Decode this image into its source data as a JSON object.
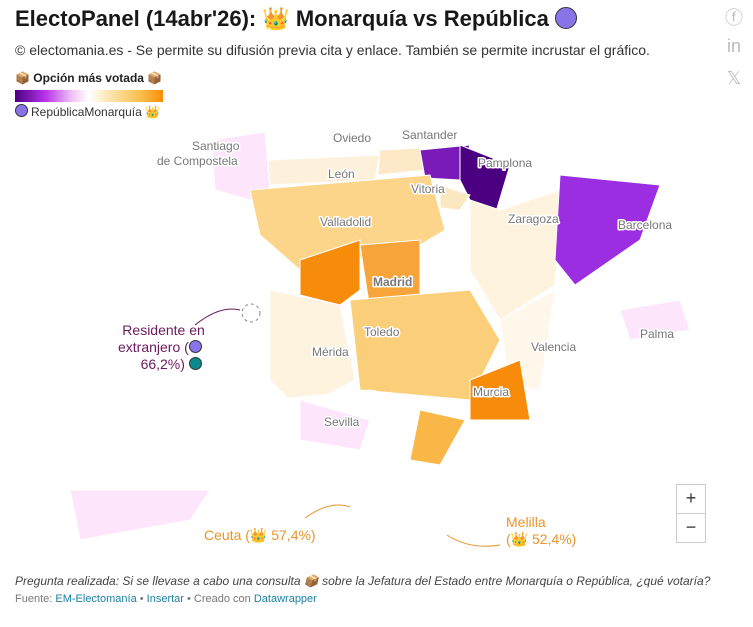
{
  "header": {
    "title": "ElectoPanel (14abr'26): 👑 Monarquía vs República",
    "subtitle": "© electomania.es - Se permite su difusión previa cita y enlace. También se permite incrustar el gráfico."
  },
  "legend": {
    "title": "📦 Opción más votada 📦",
    "left_label": "República",
    "right_label": "Monarquía 👑"
  },
  "social": [
    "facebook-icon",
    "linkedin-icon",
    "x-icon"
  ],
  "cities": [
    "Santiago",
    "de Compostela",
    "Oviedo",
    "Santander",
    "León",
    "Pamplona",
    "Vitoria",
    "Valladolid",
    "Zaragoza",
    "Barcelona",
    "Madrid",
    "Toledo",
    "Mérida",
    "Valencia",
    "Palma",
    "Murcia",
    "Sevilla"
  ],
  "annotations": {
    "abroad": [
      "Residente en",
      "extranjero (",
      "66,2%)"
    ],
    "ceuta": "Ceuta (👑 57,4%)",
    "melilla": [
      "Melilla",
      "(👑 52,4%)"
    ]
  },
  "zoom": {
    "in": "+",
    "out": "−"
  },
  "footer": {
    "question": "Pregunta realizada: Si se llevase a cabo una consulta 📦 sobre la Jefatura del Estado entre Monarquía o República, ¿qué votaría?",
    "source_label": "Fuente:",
    "source": "EM-Electomanía",
    "embed": "Insertar",
    "created": "Creado con",
    "tool": "Datawrapper"
  },
  "colors": {
    "republic_dark": "#4b0082",
    "republic": "#9b2ee0",
    "monarchy": "#f78c0a",
    "accent_purple": "#8a72e8"
  }
}
